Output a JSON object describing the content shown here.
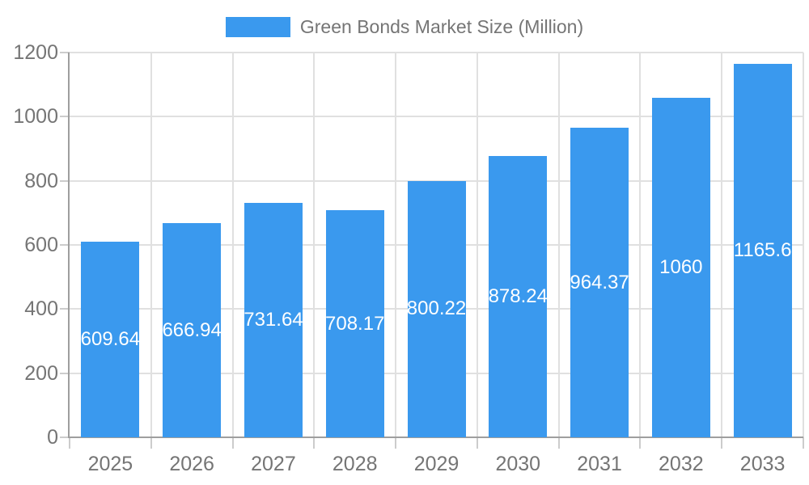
{
  "chart_data": {
    "type": "bar",
    "title": "Green Bonds Market Size (Million)",
    "legend_entries": [
      "Green Bonds Market Size (Million)"
    ],
    "legend_position": "top",
    "categories": [
      "2025",
      "2026",
      "2027",
      "2028",
      "2029",
      "2030",
      "2031",
      "2032",
      "2033"
    ],
    "values": [
      609.64,
      666.94,
      731.64,
      708.17,
      800.22,
      878.24,
      964.37,
      1060,
      1165.6
    ],
    "value_labels": [
      "609.64",
      "666.94",
      "731.64",
      "708.17",
      "800.22",
      "878.24",
      "964.37",
      "1060",
      "1165.6"
    ],
    "xlabel": "",
    "ylabel": "",
    "ylim": [
      0,
      1200
    ],
    "ytick_step": 200,
    "ytick_labels": [
      "0",
      "200",
      "400",
      "600",
      "800",
      "1000",
      "1200"
    ],
    "grid": true,
    "bar_color": "#3A99EE",
    "value_label_color": "#FFFFFF",
    "axis_label_color": "#757575",
    "gridline_color": "#E0E0E0",
    "tick_color": "#CCCCCC",
    "axis_line_color": "#9E9E9E"
  }
}
